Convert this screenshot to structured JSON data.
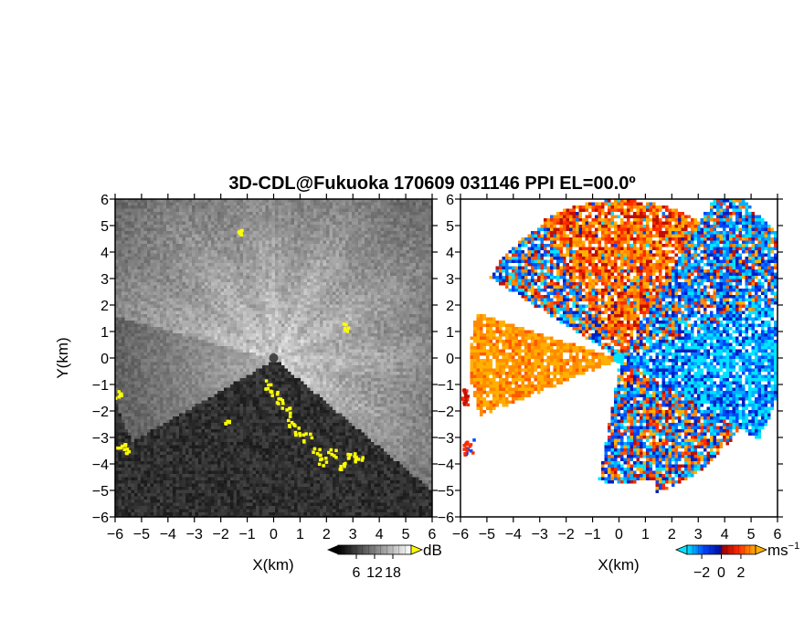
{
  "chart_data": [
    {
      "type": "heatmap",
      "title": "3D-CDL@Fukuoka 170609 031146 PPI EL=00.0º",
      "panel": "reflectivity",
      "xlabel": "X(km)",
      "ylabel": "Y(km)",
      "xlim": [
        -6,
        6
      ],
      "ylim": [
        -6,
        6
      ],
      "xticks": [
        "−6",
        "−5",
        "−4",
        "−3",
        "−2",
        "−1",
        "0",
        "1",
        "2",
        "3",
        "4",
        "5",
        "6"
      ],
      "yticks": [
        "6",
        "5",
        "4",
        "3",
        "2",
        "1",
        "0",
        "−1",
        "−2",
        "−3",
        "−4",
        "−5",
        "−6"
      ],
      "colorbar": {
        "unit": "dB",
        "ticks": [
          "6",
          "12",
          "18"
        ],
        "values": [
          6,
          12,
          18
        ],
        "range": [
          0,
          24
        ],
        "colors": [
          "#000000",
          "#ffffff"
        ],
        "extra_color": "#ffff00"
      },
      "background_color": "#2a2a2a"
    },
    {
      "type": "heatmap",
      "panel": "velocity",
      "xlabel": "X(km)",
      "xlim": [
        -6,
        6
      ],
      "ylim": [
        -6,
        6
      ],
      "xticks": [
        "−6",
        "−5",
        "−4",
        "−3",
        "−2",
        "−1",
        "0",
        "1",
        "2",
        "3",
        "4",
        "5",
        "6"
      ],
      "yticks": [
        "6",
        "5",
        "4",
        "3",
        "2",
        "1",
        "0",
        "−1",
        "−2",
        "−3",
        "−4",
        "−5",
        "−6"
      ],
      "colorbar": {
        "unit": "ms",
        "unit_exponent": "−1",
        "ticks": [
          "−2",
          "0",
          "2"
        ],
        "values": [
          -2,
          0,
          2
        ],
        "range": [
          -3.5,
          3.5
        ],
        "colors": [
          "#00e5ff",
          "#0044ff",
          "#0010a0",
          "#a00000",
          "#ff2a00",
          "#ffb000"
        ]
      }
    }
  ]
}
